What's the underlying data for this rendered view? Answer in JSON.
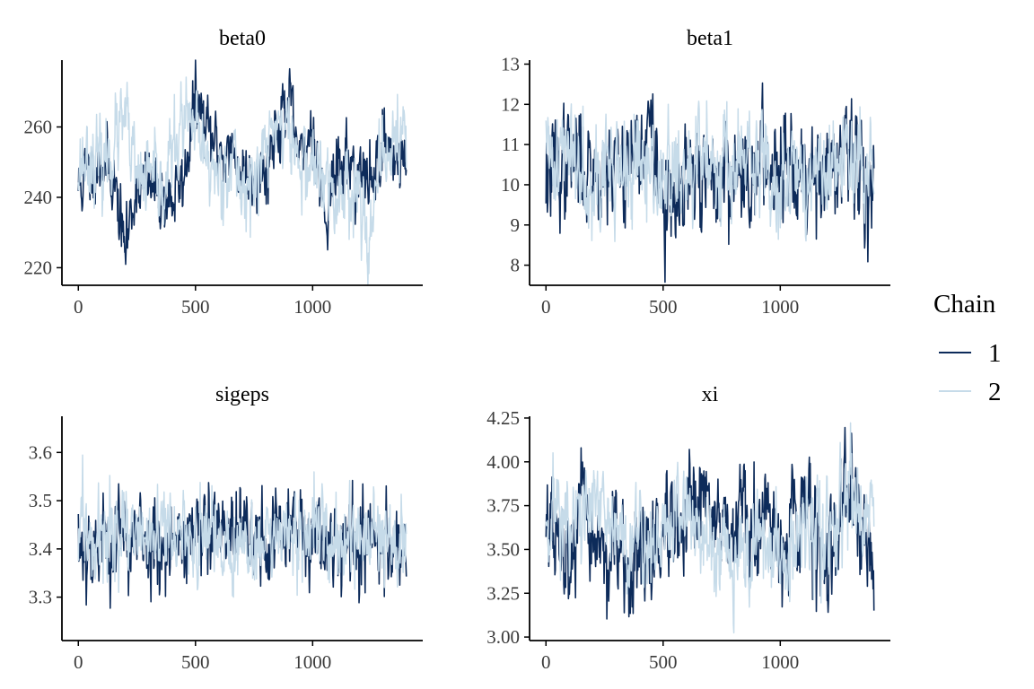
{
  "legend": {
    "title": "Chain",
    "entries": [
      {
        "label": "1",
        "color": "#0d2b5a"
      },
      {
        "label": "2",
        "color": "#c6dbe9"
      }
    ]
  },
  "chart_data": [
    {
      "type": "line",
      "title": "beta0",
      "xlabel": "",
      "ylabel": "",
      "x_range": [
        0,
        1400
      ],
      "xlim": [
        -70,
        1470
      ],
      "ylim": [
        215,
        279
      ],
      "x_ticks": [
        0,
        500,
        1000
      ],
      "y_ticks": [
        220,
        240,
        260
      ],
      "grid": false,
      "legend_position": "right",
      "series": [
        {
          "name": "1",
          "color": "#0d2b5a",
          "anchors": [
            [
              0,
              243
            ],
            [
              50,
              247
            ],
            [
              100,
              251
            ],
            [
              150,
              246
            ],
            [
              200,
              225
            ],
            [
              250,
              245
            ],
            [
              300,
              243
            ],
            [
              350,
              241
            ],
            [
              400,
              239
            ],
            [
              450,
              245
            ],
            [
              500,
              268
            ],
            [
              550,
              258
            ],
            [
              600,
              254
            ],
            [
              650,
              252
            ],
            [
              700,
              247
            ],
            [
              750,
              248
            ],
            [
              800,
              247
            ],
            [
              850,
              262
            ],
            [
              900,
              266
            ],
            [
              950,
              248
            ],
            [
              1000,
              261
            ],
            [
              1050,
              236
            ],
            [
              1100,
              247
            ],
            [
              1150,
              251
            ],
            [
              1200,
              246
            ],
            [
              1250,
              244
            ],
            [
              1300,
              256
            ],
            [
              1350,
              252
            ],
            [
              1400,
              249
            ]
          ],
          "noise": 5.5,
          "seed": 11
        },
        {
          "name": "2",
          "color": "#c6dbe9",
          "anchors": [
            [
              0,
              250
            ],
            [
              50,
              252
            ],
            [
              100,
              248
            ],
            [
              150,
              255
            ],
            [
              200,
              262
            ],
            [
              250,
              244
            ],
            [
              300,
              246
            ],
            [
              350,
              241
            ],
            [
              400,
              252
            ],
            [
              450,
              262
            ],
            [
              500,
              258
            ],
            [
              550,
              250
            ],
            [
              600,
              246
            ],
            [
              650,
              251
            ],
            [
              700,
              243
            ],
            [
              750,
              244
            ],
            [
              800,
              254
            ],
            [
              850,
              262
            ],
            [
              900,
              258
            ],
            [
              950,
              248
            ],
            [
              1000,
              250
            ],
            [
              1050,
              244
            ],
            [
              1100,
              238
            ],
            [
              1150,
              245
            ],
            [
              1200,
              240
            ],
            [
              1250,
              229
            ],
            [
              1300,
              252
            ],
            [
              1350,
              256
            ],
            [
              1400,
              258
            ]
          ],
          "noise": 6.5,
          "seed": 23
        }
      ]
    },
    {
      "type": "line",
      "title": "beta1",
      "xlabel": "",
      "ylabel": "",
      "x_range": [
        0,
        1400
      ],
      "xlim": [
        -70,
        1470
      ],
      "ylim": [
        7.5,
        13.1
      ],
      "x_ticks": [
        0,
        500,
        1000
      ],
      "y_ticks": [
        8,
        9,
        10,
        11,
        12,
        13
      ],
      "grid": false,
      "legend_position": "right",
      "series": [
        {
          "name": "1",
          "color": "#0d2b5a",
          "anchors": [
            [
              0,
              10.2
            ],
            [
              100,
              10.6
            ],
            [
              200,
              10.4
            ],
            [
              300,
              10.5
            ],
            [
              400,
              10.9
            ],
            [
              450,
              11.2
            ],
            [
              500,
              9.6
            ],
            [
              550,
              9.2
            ],
            [
              600,
              10.2
            ],
            [
              700,
              10.1
            ],
            [
              800,
              10.3
            ],
            [
              900,
              10.4
            ],
            [
              1000,
              10.6
            ],
            [
              1050,
              10.9
            ],
            [
              1100,
              10.3
            ],
            [
              1200,
              10.5
            ],
            [
              1250,
              10.2
            ],
            [
              1300,
              10.6
            ],
            [
              1400,
              10.1
            ]
          ],
          "noise": 0.75,
          "seed": 37
        },
        {
          "name": "2",
          "color": "#c6dbe9",
          "anchors": [
            [
              0,
              10.6
            ],
            [
              100,
              10.9
            ],
            [
              200,
              10.3
            ],
            [
              300,
              10.4
            ],
            [
              400,
              10.3
            ],
            [
              500,
              10.2
            ],
            [
              600,
              10.1
            ],
            [
              700,
              10.8
            ],
            [
              800,
              10.5
            ],
            [
              900,
              10.4
            ],
            [
              1000,
              10.3
            ],
            [
              1100,
              10.2
            ],
            [
              1200,
              10.2
            ],
            [
              1300,
              10.5
            ],
            [
              1400,
              10.6
            ]
          ],
          "noise": 0.75,
          "seed": 41
        }
      ]
    },
    {
      "type": "line",
      "title": "sigeps",
      "xlabel": "",
      "ylabel": "",
      "x_range": [
        0,
        1400
      ],
      "xlim": [
        -70,
        1470
      ],
      "ylim": [
        3.21,
        3.675
      ],
      "x_ticks": [
        0,
        500,
        1000
      ],
      "y_ticks": [
        3.3,
        3.4,
        3.5,
        3.6
      ],
      "grid": false,
      "legend_position": "right",
      "series": [
        {
          "name": "1",
          "color": "#0d2b5a",
          "anchors": [
            [
              0,
              3.41
            ],
            [
              200,
              3.42
            ],
            [
              400,
              3.42
            ],
            [
              600,
              3.43
            ],
            [
              800,
              3.42
            ],
            [
              1000,
              3.44
            ],
            [
              1200,
              3.41
            ],
            [
              1400,
              3.41
            ]
          ],
          "noise": 0.055,
          "seed": 53
        },
        {
          "name": "2",
          "color": "#c6dbe9",
          "anchors": [
            [
              0,
              3.42
            ],
            [
              200,
              3.43
            ],
            [
              400,
              3.42
            ],
            [
              600,
              3.42
            ],
            [
              800,
              3.41
            ],
            [
              1000,
              3.42
            ],
            [
              1200,
              3.42
            ],
            [
              1400,
              3.41
            ]
          ],
          "noise": 0.05,
          "seed": 59
        }
      ]
    },
    {
      "type": "line",
      "title": "xi",
      "xlabel": "",
      "ylabel": "",
      "x_range": [
        0,
        1400
      ],
      "xlim": [
        -70,
        1470
      ],
      "ylim": [
        2.98,
        4.26
      ],
      "x_ticks": [
        0,
        500,
        1000
      ],
      "y_ticks": [
        3.0,
        3.25,
        3.5,
        3.75,
        4.0,
        4.25
      ],
      "y_tick_decimals": 2,
      "grid": false,
      "legend_position": "right",
      "series": [
        {
          "name": "1",
          "color": "#0d2b5a",
          "anchors": [
            [
              0,
              3.7
            ],
            [
              50,
              3.5
            ],
            [
              100,
              3.4
            ],
            [
              150,
              3.7
            ],
            [
              200,
              3.6
            ],
            [
              250,
              3.45
            ],
            [
              300,
              3.5
            ],
            [
              350,
              3.3
            ],
            [
              400,
              3.5
            ],
            [
              450,
              3.45
            ],
            [
              500,
              3.6
            ],
            [
              550,
              3.5
            ],
            [
              600,
              3.6
            ],
            [
              650,
              3.7
            ],
            [
              700,
              3.85
            ],
            [
              750,
              3.6
            ],
            [
              800,
              3.5
            ],
            [
              850,
              3.75
            ],
            [
              900,
              3.5
            ],
            [
              950,
              3.7
            ],
            [
              1000,
              3.55
            ],
            [
              1050,
              3.6
            ],
            [
              1100,
              3.75
            ],
            [
              1150,
              3.65
            ],
            [
              1200,
              3.35
            ],
            [
              1250,
              3.55
            ],
            [
              1300,
              3.85
            ],
            [
              1350,
              3.6
            ],
            [
              1400,
              3.45
            ]
          ],
          "noise": 0.16,
          "seed": 67
        },
        {
          "name": "2",
          "color": "#c6dbe9",
          "anchors": [
            [
              0,
              3.7
            ],
            [
              50,
              3.75
            ],
            [
              100,
              3.6
            ],
            [
              150,
              3.7
            ],
            [
              200,
              3.75
            ],
            [
              250,
              3.65
            ],
            [
              300,
              3.6
            ],
            [
              350,
              3.55
            ],
            [
              400,
              3.6
            ],
            [
              450,
              3.5
            ],
            [
              500,
              3.55
            ],
            [
              550,
              3.7
            ],
            [
              600,
              3.75
            ],
            [
              650,
              3.6
            ],
            [
              700,
              3.5
            ],
            [
              750,
              3.55
            ],
            [
              800,
              3.5
            ],
            [
              850,
              3.45
            ],
            [
              900,
              3.55
            ],
            [
              950,
              3.5
            ],
            [
              1000,
              3.45
            ],
            [
              1050,
              3.5
            ],
            [
              1100,
              3.55
            ],
            [
              1150,
              3.6
            ],
            [
              1200,
              3.6
            ],
            [
              1250,
              3.7
            ],
            [
              1300,
              3.85
            ],
            [
              1350,
              3.6
            ],
            [
              1400,
              3.7
            ]
          ],
          "noise": 0.16,
          "seed": 71
        }
      ]
    }
  ]
}
